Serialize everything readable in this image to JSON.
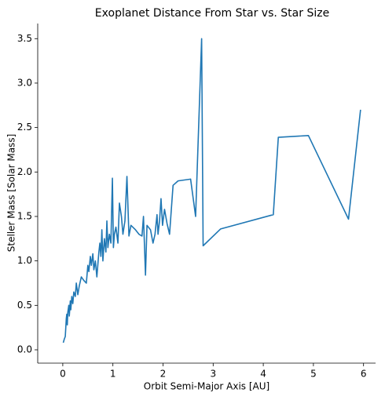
{
  "chart_data": {
    "type": "line",
    "title": "Exoplanet Distance From Star vs. Star Size",
    "xlabel": "Orbit Semi-Major Axis [AU]",
    "ylabel": "Steller Mass [Solar Mass]",
    "color": "#1f77b4",
    "x": [
      0.01,
      0.03,
      0.05,
      0.06,
      0.07,
      0.08,
      0.09,
      0.1,
      0.12,
      0.13,
      0.15,
      0.16,
      0.18,
      0.2,
      0.22,
      0.25,
      0.27,
      0.3,
      0.33,
      0.37,
      0.42,
      0.47,
      0.5,
      0.52,
      0.55,
      0.57,
      0.6,
      0.62,
      0.65,
      0.68,
      0.72,
      0.74,
      0.76,
      0.78,
      0.8,
      0.83,
      0.86,
      0.88,
      0.9,
      0.93,
      0.96,
      0.99,
      1.01,
      1.03,
      1.06,
      1.1,
      1.13,
      1.17,
      1.2,
      1.24,
      1.28,
      1.32,
      1.36,
      1.45,
      1.52,
      1.58,
      1.61,
      1.65,
      1.68,
      1.75,
      1.8,
      1.84,
      1.88,
      1.9,
      1.93,
      1.96,
      1.99,
      2.03,
      2.08,
      2.13,
      2.2,
      2.3,
      2.55,
      2.65,
      2.77,
      2.8,
      3.15,
      4.2,
      4.3,
      4.9,
      5.7,
      5.94
    ],
    "values": [
      0.08,
      0.12,
      0.15,
      0.25,
      0.35,
      0.4,
      0.28,
      0.42,
      0.5,
      0.38,
      0.55,
      0.45,
      0.6,
      0.52,
      0.65,
      0.6,
      0.75,
      0.62,
      0.72,
      0.82,
      0.78,
      0.75,
      0.95,
      0.88,
      1.05,
      0.95,
      1.08,
      0.9,
      1.0,
      0.82,
      1.1,
      1.2,
      1.05,
      1.35,
      1.0,
      1.25,
      1.1,
      1.45,
      1.15,
      1.3,
      1.2,
      1.93,
      1.15,
      1.3,
      1.38,
      1.2,
      1.65,
      1.5,
      1.3,
      1.45,
      1.95,
      1.28,
      1.4,
      1.35,
      1.3,
      1.28,
      1.5,
      0.84,
      1.4,
      1.35,
      1.2,
      1.3,
      1.52,
      1.3,
      1.45,
      1.7,
      1.4,
      1.58,
      1.42,
      1.3,
      1.85,
      1.9,
      1.92,
      1.5,
      3.5,
      1.17,
      1.36,
      1.52,
      2.39,
      2.41,
      1.47,
      2.7
    ],
    "xlim": [
      -0.5,
      6.24
    ],
    "xticks": [
      0,
      1,
      2,
      3,
      4,
      5,
      6
    ],
    "ylim": [
      -0.15,
      3.67
    ],
    "yticks": [
      {
        "value": 0,
        "label": "0.0"
      },
      0.5,
      {
        "value": 1,
        "label": "1.0"
      },
      1.5,
      {
        "value": 2,
        "label": "2.0"
      },
      2.5,
      {
        "value": 3,
        "label": "3.0"
      },
      3.5
    ]
  }
}
